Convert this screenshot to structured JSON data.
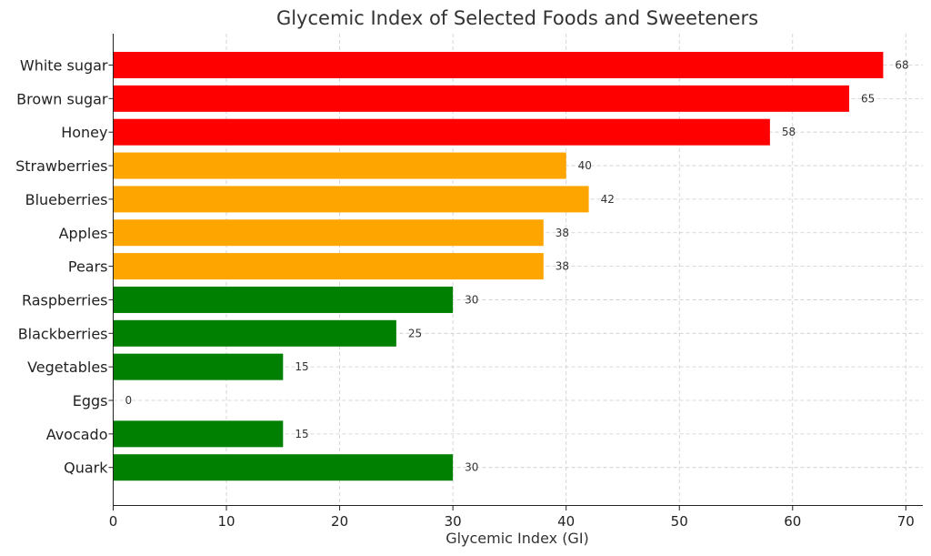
{
  "chart_data": {
    "type": "bar",
    "orientation": "horizontal",
    "title": "Glycemic Index of Selected Foods and Sweeteners",
    "xlabel": "Glycemic Index (GI)",
    "ylabel": "",
    "xlim": [
      0,
      71.5
    ],
    "xticks": [
      0,
      10,
      20,
      30,
      40,
      50,
      60,
      70
    ],
    "grid": true,
    "categories": [
      "White sugar",
      "Brown sugar",
      "Honey",
      "Strawberries",
      "Blueberries",
      "Apples",
      "Pears",
      "Raspberries",
      "Blackberries",
      "Vegetables",
      "Eggs",
      "Avocado",
      "Quark"
    ],
    "values": [
      68,
      65,
      58,
      40,
      42,
      38,
      38,
      30,
      25,
      15,
      0,
      15,
      30
    ],
    "bar_colors": [
      "#ff0000",
      "#ff0000",
      "#ff0000",
      "#ffa500",
      "#ffa500",
      "#ffa500",
      "#ffa500",
      "#008000",
      "#008000",
      "#008000",
      "#008000",
      "#008000",
      "#008000"
    ],
    "data_labels": [
      "68",
      "65",
      "58",
      "40",
      "42",
      "38",
      "38",
      "30",
      "25",
      "15",
      "0",
      "15",
      "30"
    ]
  }
}
